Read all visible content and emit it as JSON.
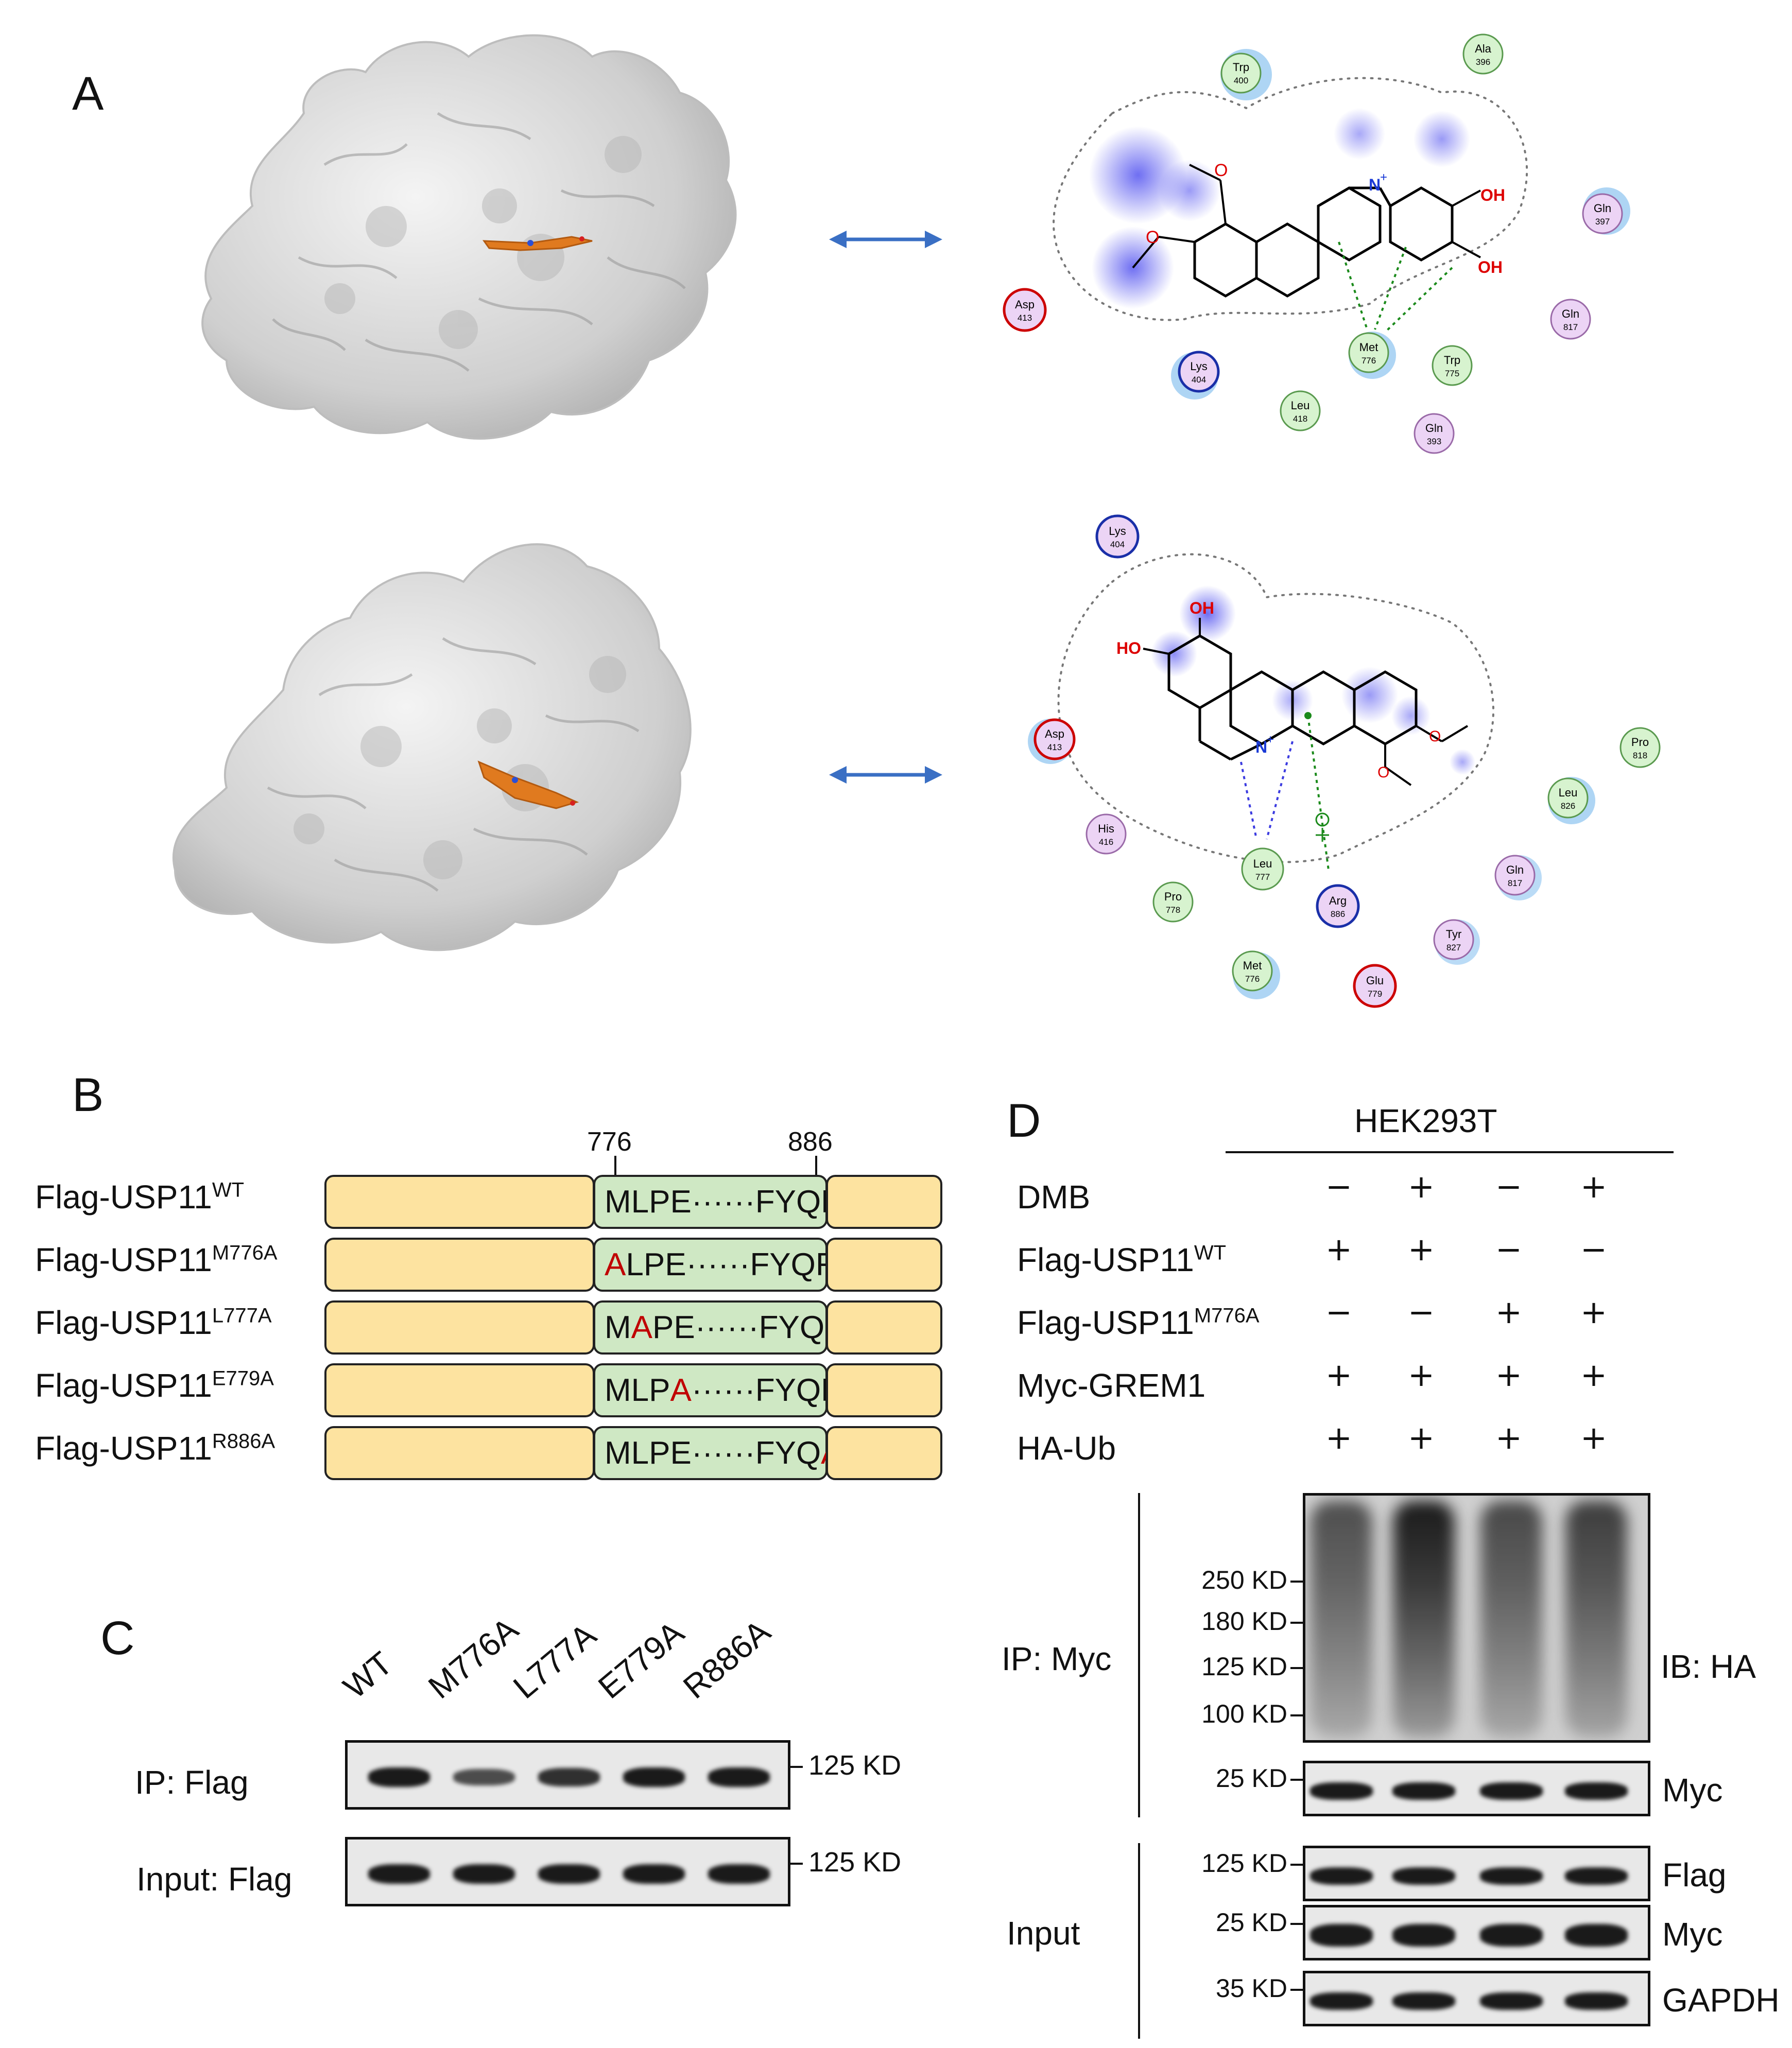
{
  "panels": {
    "A": "A",
    "B": "B",
    "C": "C",
    "D": "D"
  },
  "panelA": {
    "top": {
      "residues": [
        {
          "name": "Trp",
          "num": "400",
          "type": "green"
        },
        {
          "name": "Ala",
          "num": "396",
          "type": "green"
        },
        {
          "name": "Gln",
          "num": "397",
          "type": "pink"
        },
        {
          "name": "Gln",
          "num": "817",
          "type": "pink"
        },
        {
          "name": "Asp",
          "num": "413",
          "type": "red"
        },
        {
          "name": "Lys",
          "num": "404",
          "type": "blue"
        },
        {
          "name": "Leu",
          "num": "418",
          "type": "green"
        },
        {
          "name": "Met",
          "num": "776",
          "type": "green"
        },
        {
          "name": "Trp",
          "num": "775",
          "type": "green"
        },
        {
          "name": "Gln",
          "num": "393",
          "type": "pink"
        }
      ],
      "atoms": {
        "oh1": "OH",
        "oh2": "OH",
        "n": "N",
        "plus": "+"
      }
    },
    "bottom": {
      "residues": [
        {
          "name": "Lys",
          "num": "404",
          "type": "blue"
        },
        {
          "name": "Asp",
          "num": "413",
          "type": "red"
        },
        {
          "name": "His",
          "num": "416",
          "type": "pink"
        },
        {
          "name": "Pro",
          "num": "778",
          "type": "green"
        },
        {
          "name": "Leu",
          "num": "777",
          "type": "green"
        },
        {
          "name": "Arg",
          "num": "886",
          "type": "blue"
        },
        {
          "name": "Met",
          "num": "776",
          "type": "green"
        },
        {
          "name": "Glu",
          "num": "779",
          "type": "red"
        },
        {
          "name": "Tyr",
          "num": "827",
          "type": "pink"
        },
        {
          "name": "Gln",
          "num": "817",
          "type": "pink"
        },
        {
          "name": "Leu",
          "num": "826",
          "type": "green"
        },
        {
          "name": "Pro",
          "num": "818",
          "type": "green"
        }
      ],
      "atoms": {
        "oh1": "OH",
        "oh2": "HO",
        "n": "N",
        "plus": "+"
      }
    }
  },
  "panelB": {
    "pos_left": "776",
    "pos_right": "886",
    "rows": [
      {
        "base": "Flag-USP11",
        "sup": "WT",
        "pre": "",
        "mut": "",
        "post": "MLPE······FYQR"
      },
      {
        "base": "Flag-USP11",
        "sup": "M776A",
        "pre": "",
        "mut": "A",
        "post": "LPE······FYQR"
      },
      {
        "base": "Flag-USP11",
        "sup": "L777A",
        "pre": "M",
        "mut": "A",
        "post": "PE······FYQR"
      },
      {
        "base": "Flag-USP11",
        "sup": "E779A",
        "pre": "MLP",
        "mut": "A",
        "post": "······FYQR"
      },
      {
        "base": "Flag-USP11",
        "sup": "R886A",
        "pre": "MLPE······FYQ",
        "mut": "A",
        "post": ""
      }
    ]
  },
  "panelC": {
    "lanes": [
      "WT",
      "M776A",
      "L777A",
      "E779A",
      "R886A"
    ],
    "rows": [
      {
        "label": "IP: Flag",
        "marker": "125 KD",
        "intensity": [
          1.0,
          0.55,
          0.8,
          1.0,
          1.0
        ]
      },
      {
        "label": "Input: Flag",
        "marker": "125 KD",
        "intensity": [
          1.0,
          1.0,
          1.0,
          1.0,
          1.0
        ]
      }
    ]
  },
  "panelD": {
    "cell_line": "HEK293T",
    "conditions": [
      {
        "label": "DMB",
        "sup": "",
        "signs": [
          "−",
          "+",
          "−",
          "+"
        ]
      },
      {
        "label": "Flag-USP11",
        "sup": "WT",
        "signs": [
          "+",
          "+",
          "−",
          "−"
        ]
      },
      {
        "label": "Flag-USP11",
        "sup": "M776A",
        "signs": [
          "−",
          "−",
          "+",
          "+"
        ]
      },
      {
        "label": "Myc-GREM1",
        "sup": "",
        "signs": [
          "+",
          "+",
          "+",
          "+"
        ]
      },
      {
        "label": "HA-Ub",
        "sup": "",
        "signs": [
          "+",
          "+",
          "+",
          "+"
        ]
      }
    ],
    "ip_label": "IP: Myc",
    "input_label": "Input",
    "ha_blot": {
      "ib": "IB: HA",
      "markers": [
        "250 KD",
        "180 KD",
        "125 KD",
        "100 KD"
      ],
      "intensity": [
        0.55,
        1.0,
        0.6,
        0.7
      ]
    },
    "blots": [
      {
        "name": "Myc",
        "marker": "25 KD"
      },
      {
        "name": "Flag",
        "marker": "125 KD"
      },
      {
        "name": "Myc",
        "marker": "25 KD"
      },
      {
        "name": "GAPDH",
        "marker": "35 KD"
      }
    ]
  }
}
